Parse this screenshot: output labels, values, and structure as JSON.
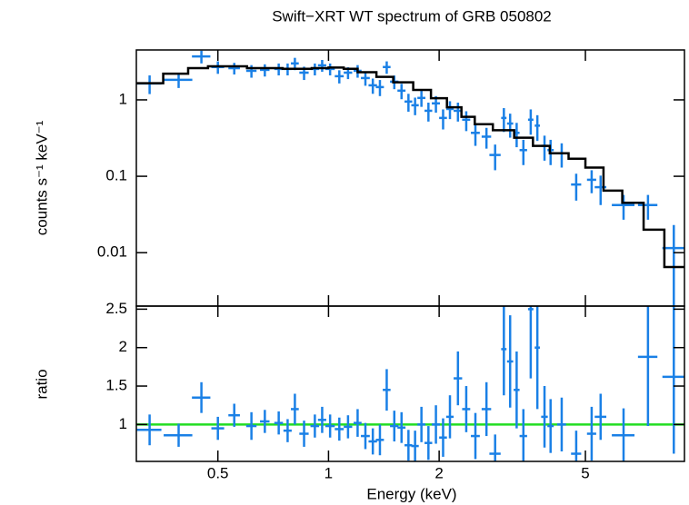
{
  "chart_data": [
    {
      "type": "errorbar",
      "title": "Swift−XRT WT spectrum of GRB 050802",
      "ylabel": "counts s⁻¹ keV⁻¹",
      "xscale": "log",
      "yscale": "log",
      "xlim": [
        0.3,
        9.3
      ],
      "ylim": [
        0.002,
        4.5
      ],
      "yticks": [
        1,
        0.1,
        0.01
      ],
      "series": [
        {
          "kind": "data",
          "color": "#1a80e6",
          "x": [
            0.326,
            0.391,
            0.451,
            0.5,
            0.554,
            0.617,
            0.671,
            0.732,
            0.774,
            0.81,
            0.858,
            0.918,
            0.961,
            1.01,
            1.07,
            1.13,
            1.2,
            1.26,
            1.32,
            1.38,
            1.44,
            1.51,
            1.58,
            1.65,
            1.72,
            1.79,
            1.87,
            1.96,
            2.05,
            2.14,
            2.25,
            2.37,
            2.51,
            2.69,
            2.84,
            3.0,
            3.12,
            3.25,
            3.39,
            3.55,
            3.7,
            3.87,
            4.02,
            4.31,
            4.72,
            5.2,
            5.5,
            6.35,
            7.4,
            8.7
          ],
          "xerr": [
            0.025,
            0.035,
            0.026,
            0.02,
            0.02,
            0.02,
            0.02,
            0.02,
            0.02,
            0.02,
            0.025,
            0.025,
            0.025,
            0.03,
            0.03,
            0.03,
            0.03,
            0.035,
            0.035,
            0.035,
            0.035,
            0.04,
            0.04,
            0.04,
            0.04,
            0.045,
            0.045,
            0.05,
            0.05,
            0.05,
            0.06,
            0.06,
            0.07,
            0.08,
            0.1,
            0.05,
            0.06,
            0.06,
            0.08,
            0.06,
            0.06,
            0.08,
            0.08,
            0.12,
            0.15,
            0.15,
            0.2,
            0.45,
            0.45,
            0.6
          ],
          "values": [
            1.64,
            1.83,
            3.7,
            2.69,
            2.6,
            2.4,
            2.47,
            2.54,
            2.54,
            3.0,
            2.27,
            2.54,
            2.83,
            2.54,
            2.04,
            2.27,
            2.4,
            1.93,
            1.55,
            1.47,
            2.69,
            1.73,
            1.32,
            0.95,
            0.85,
            1.06,
            0.72,
            0.9,
            0.58,
            0.76,
            0.72,
            0.55,
            0.37,
            0.33,
            0.19,
            0.58,
            0.49,
            0.37,
            0.22,
            0.55,
            0.46,
            0.25,
            0.22,
            0.2,
            0.078,
            0.09,
            0.072,
            0.042,
            0.042,
            0.0115
          ],
          "yerr": [
            0.45,
            0.4,
            0.7,
            0.5,
            0.45,
            0.45,
            0.45,
            0.45,
            0.45,
            0.55,
            0.45,
            0.45,
            0.5,
            0.45,
            0.4,
            0.4,
            0.45,
            0.4,
            0.35,
            0.35,
            0.5,
            0.35,
            0.3,
            0.25,
            0.22,
            0.25,
            0.2,
            0.22,
            0.17,
            0.2,
            0.2,
            0.16,
            0.12,
            0.1,
            0.07,
            0.2,
            0.17,
            0.13,
            0.08,
            0.2,
            0.17,
            0.09,
            0.08,
            0.07,
            0.03,
            0.03,
            0.03,
            0.015,
            0.015,
            0.0115
          ]
        },
        {
          "kind": "model",
          "color": "#000000",
          "bins": [
            0.3,
            0.355,
            0.415,
            0.47,
            0.6,
            0.75,
            0.9,
            1.0,
            1.1,
            1.2,
            1.35,
            1.5,
            1.7,
            1.9,
            2.1,
            2.3,
            2.5,
            2.8,
            3.2,
            3.6,
            4.0,
            4.5,
            5.0,
            5.6,
            6.3,
            7.2,
            8.2,
            9.3
          ],
          "values": [
            1.65,
            2.2,
            2.6,
            2.75,
            2.6,
            2.55,
            2.6,
            2.65,
            2.55,
            2.3,
            2.0,
            1.7,
            1.35,
            1.05,
            0.8,
            0.6,
            0.48,
            0.4,
            0.32,
            0.25,
            0.2,
            0.17,
            0.13,
            0.065,
            0.045,
            0.02,
            0.0065
          ]
        }
      ]
    },
    {
      "type": "errorbar",
      "ylabel": "ratio",
      "xlabel": "Energy (keV)",
      "xscale": "log",
      "xlim": [
        0.3,
        9.3
      ],
      "xticks": [
        0.5,
        1,
        2,
        5
      ],
      "ylim": [
        0.52,
        2.54
      ],
      "yticks": [
        1,
        1.5,
        2,
        2.5
      ],
      "reference": 1,
      "reference_color": "#22dd22",
      "series": [
        {
          "kind": "data",
          "color": "#1a80e6",
          "values": [
            0.93,
            0.86,
            1.35,
            0.95,
            1.12,
            0.98,
            1.04,
            1.02,
            0.92,
            1.2,
            0.88,
            0.98,
            1.06,
            0.98,
            0.94,
            0.97,
            1.02,
            0.85,
            0.78,
            0.8,
            1.45,
            0.98,
            0.96,
            0.73,
            0.72,
            1.0,
            0.76,
            1.0,
            0.83,
            1.1,
            1.6,
            1.2,
            0.85,
            1.2,
            0.62,
            1.98,
            1.82,
            1.45,
            0.85,
            2.5,
            2.0,
            1.1,
            0.98,
            1.0,
            0.62,
            0.88,
            1.1,
            0.86,
            1.88,
            1.62
          ],
          "yerr": [
            0.2,
            0.15,
            0.2,
            0.15,
            0.15,
            0.18,
            0.15,
            0.15,
            0.15,
            0.2,
            0.17,
            0.15,
            0.17,
            0.15,
            0.15,
            0.15,
            0.18,
            0.17,
            0.17,
            0.2,
            0.27,
            0.2,
            0.2,
            0.2,
            0.2,
            0.23,
            0.22,
            0.25,
            0.25,
            0.28,
            0.35,
            0.3,
            0.3,
            0.35,
            0.25,
            0.6,
            0.6,
            0.5,
            0.35,
            0.9,
            0.8,
            0.4,
            0.35,
            0.35,
            0.3,
            0.35,
            0.3,
            0.35,
            0.9,
            1.0
          ]
        }
      ]
    }
  ]
}
